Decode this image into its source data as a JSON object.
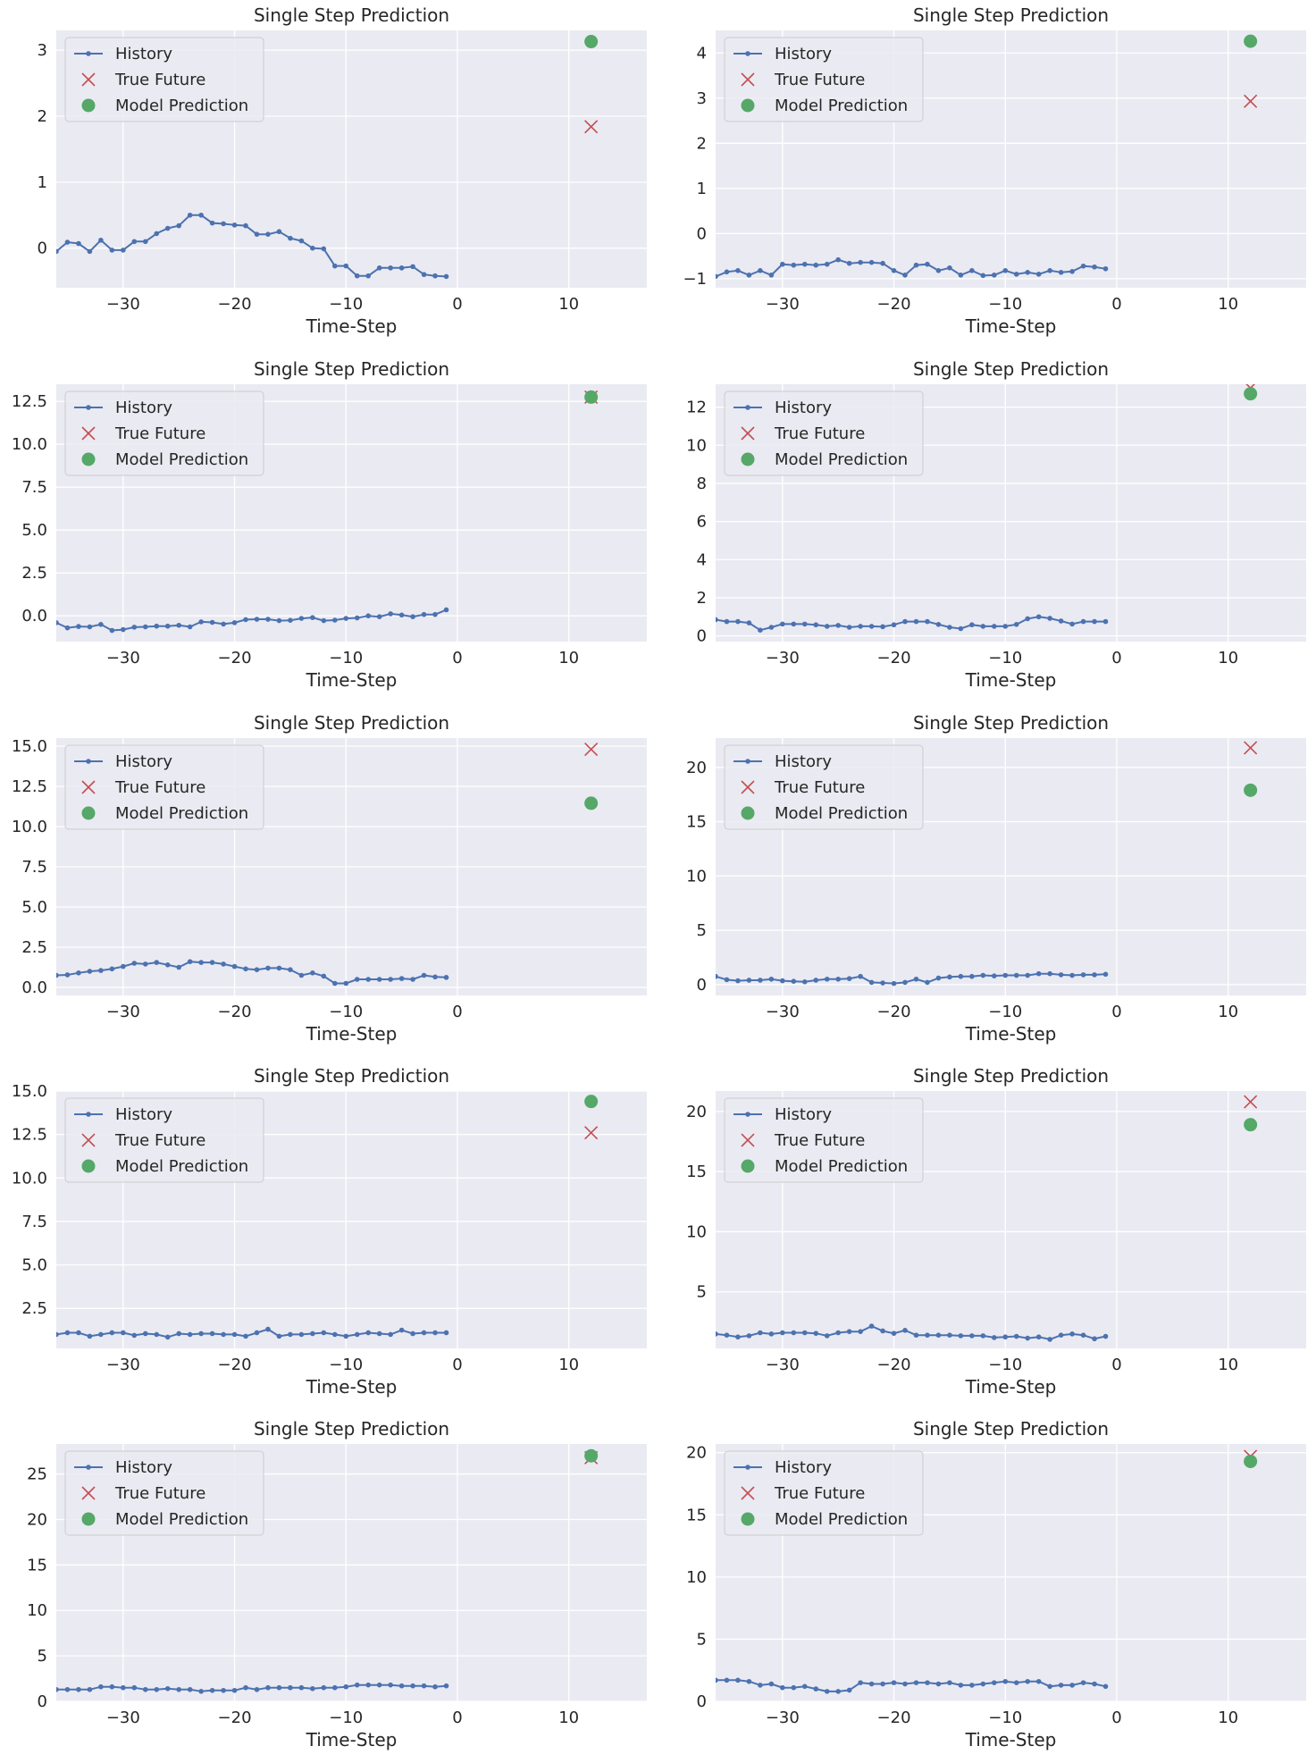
{
  "figure": {
    "colors": {
      "axes_bg": "#EAEAF2",
      "grid": "#FFFFFF",
      "history": "#4C72B0",
      "true_future": "#C44E52",
      "prediction": "#55A868",
      "legend_bg": "#EAEAF2",
      "legend_border": "#CCCCCC"
    },
    "legend": {
      "placement": "upper-left",
      "entries": [
        "History",
        "True Future",
        "Model Prediction"
      ]
    }
  },
  "chart_data": [
    {
      "type": "line",
      "title": "Single Step Prediction",
      "xlabel": "Time-Step",
      "xlim": [
        -36,
        17
      ],
      "ylim": [
        -0.6,
        3.3
      ],
      "xticks": [
        "-30",
        "-20",
        "-10",
        "0",
        "10"
      ],
      "yticks": [
        "0",
        "1",
        "2",
        "3"
      ],
      "grid": true,
      "x": [
        -36,
        -35,
        -34,
        -33,
        -32,
        -31,
        -30,
        -29,
        -28,
        -27,
        -26,
        -25,
        -24,
        -23,
        -22,
        -21,
        -20,
        -19,
        -18,
        -17,
        -16,
        -15,
        -14,
        -13,
        -12,
        -11,
        -10,
        -9,
        -8,
        -7,
        -6,
        -5,
        -4,
        -3,
        -2,
        -1
      ],
      "series": [
        {
          "name": "History",
          "values": [
            -0.05,
            0.09,
            0.07,
            -0.05,
            0.12,
            -0.03,
            -0.03,
            0.1,
            0.1,
            0.22,
            0.3,
            0.34,
            0.5,
            0.5,
            0.38,
            0.37,
            0.35,
            0.34,
            0.21,
            0.21,
            0.25,
            0.15,
            0.11,
            0.0,
            -0.01,
            -0.27,
            -0.27,
            -0.42,
            -0.42,
            -0.3,
            -0.3,
            -0.3,
            -0.28,
            -0.4,
            -0.42,
            -0.43
          ]
        },
        {
          "name": "True Future",
          "x": [
            12
          ],
          "values": [
            1.84
          ]
        },
        {
          "name": "Model Prediction",
          "x": [
            12
          ],
          "values": [
            3.13
          ]
        }
      ]
    },
    {
      "type": "line",
      "title": "Single Step Prediction",
      "xlabel": "Time-Step",
      "xlim": [
        -36,
        17
      ],
      "ylim": [
        -1.2,
        4.5
      ],
      "xticks": [
        "-30",
        "-20",
        "-10",
        "0",
        "10"
      ],
      "yticks": [
        "−1",
        "0",
        "1",
        "2",
        "3",
        "4"
      ],
      "grid": true,
      "x": [
        -36,
        -35,
        -34,
        -33,
        -32,
        -31,
        -30,
        -29,
        -28,
        -27,
        -26,
        -25,
        -24,
        -23,
        -22,
        -21,
        -20,
        -19,
        -18,
        -17,
        -16,
        -15,
        -14,
        -13,
        -12,
        -11,
        -10,
        -9,
        -8,
        -7,
        -6,
        -5,
        -4,
        -3,
        -2,
        -1
      ],
      "series": [
        {
          "name": "History",
          "values": [
            -0.95,
            -0.85,
            -0.82,
            -0.92,
            -0.82,
            -0.92,
            -0.68,
            -0.7,
            -0.68,
            -0.7,
            -0.68,
            -0.58,
            -0.66,
            -0.64,
            -0.64,
            -0.66,
            -0.82,
            -0.92,
            -0.7,
            -0.68,
            -0.82,
            -0.76,
            -0.92,
            -0.82,
            -0.93,
            -0.92,
            -0.82,
            -0.9,
            -0.86,
            -0.9,
            -0.82,
            -0.86,
            -0.84,
            -0.72,
            -0.74,
            -0.78
          ]
        },
        {
          "name": "True Future",
          "x": [
            12
          ],
          "values": [
            2.93
          ]
        },
        {
          "name": "Model Prediction",
          "x": [
            12
          ],
          "values": [
            4.26
          ]
        }
      ]
    },
    {
      "type": "line",
      "title": "Single Step Prediction",
      "xlabel": "Time-Step",
      "xlim": [
        -36,
        17
      ],
      "ylim": [
        -1.5,
        13.5
      ],
      "xticks": [
        "-30",
        "-20",
        "-10",
        "0",
        "10"
      ],
      "yticks": [
        "0.0",
        "2.5",
        "5.0",
        "7.5",
        "10.0",
        "12.5"
      ],
      "grid": true,
      "x": [
        -36,
        -35,
        -34,
        -33,
        -32,
        -31,
        -30,
        -29,
        -28,
        -27,
        -26,
        -25,
        -24,
        -23,
        -22,
        -21,
        -20,
        -19,
        -18,
        -17,
        -16,
        -15,
        -14,
        -13,
        -12,
        -11,
        -10,
        -9,
        -8,
        -7,
        -6,
        -5,
        -4,
        -3,
        -2,
        -1
      ],
      "series": [
        {
          "name": "History",
          "values": [
            -0.4,
            -0.7,
            -0.62,
            -0.64,
            -0.5,
            -0.85,
            -0.8,
            -0.66,
            -0.64,
            -0.6,
            -0.6,
            -0.55,
            -0.64,
            -0.35,
            -0.38,
            -0.48,
            -0.4,
            -0.22,
            -0.2,
            -0.2,
            -0.28,
            -0.26,
            -0.15,
            -0.1,
            -0.28,
            -0.25,
            -0.15,
            -0.12,
            0.0,
            -0.05,
            0.12,
            0.05,
            -0.05,
            0.08,
            0.08,
            0.35
          ]
        },
        {
          "name": "True Future",
          "x": [
            12
          ],
          "values": [
            12.75
          ]
        },
        {
          "name": "Model Prediction",
          "x": [
            12
          ],
          "values": [
            12.75
          ]
        }
      ]
    },
    {
      "type": "line",
      "title": "Single Step Prediction",
      "xlabel": "Time-Step",
      "xlim": [
        -36,
        17
      ],
      "ylim": [
        -0.3,
        13.2
      ],
      "xticks": [
        "-30",
        "-20",
        "-10",
        "0",
        "10"
      ],
      "yticks": [
        "0",
        "2",
        "4",
        "6",
        "8",
        "10",
        "12"
      ],
      "grid": true,
      "x": [
        -36,
        -35,
        -34,
        -33,
        -32,
        -31,
        -30,
        -29,
        -28,
        -27,
        -26,
        -25,
        -24,
        -23,
        -22,
        -21,
        -20,
        -19,
        -18,
        -17,
        -16,
        -15,
        -14,
        -13,
        -12,
        -11,
        -10,
        -9,
        -8,
        -7,
        -6,
        -5,
        -4,
        -3,
        -2,
        -1
      ],
      "series": [
        {
          "name": "History",
          "values": [
            0.85,
            0.75,
            0.75,
            0.68,
            0.3,
            0.45,
            0.62,
            0.62,
            0.62,
            0.58,
            0.5,
            0.55,
            0.45,
            0.5,
            0.5,
            0.48,
            0.58,
            0.75,
            0.75,
            0.75,
            0.6,
            0.45,
            0.38,
            0.58,
            0.5,
            0.5,
            0.5,
            0.6,
            0.9,
            1.0,
            0.92,
            0.78,
            0.62,
            0.75,
            0.75,
            0.75
          ]
        },
        {
          "name": "True Future",
          "x": [
            12
          ],
          "values": [
            13.0
          ]
        },
        {
          "name": "Model Prediction",
          "x": [
            12
          ],
          "values": [
            12.7
          ]
        }
      ]
    },
    {
      "type": "line",
      "title": "Single Step Prediction",
      "xlabel": "Time-Step",
      "xlim": [
        -36,
        17
      ],
      "ylim": [
        -0.5,
        15.5
      ],
      "xticks": [
        "-30",
        "-20",
        "-10",
        "0"
      ],
      "yticks": [
        "0.0",
        "2.5",
        "5.0",
        "7.5",
        "10.0",
        "12.5",
        "15.0"
      ],
      "grid": true,
      "x": [
        -36,
        -35,
        -34,
        -33,
        -32,
        -31,
        -30,
        -29,
        -28,
        -27,
        -26,
        -25,
        -24,
        -23,
        -22,
        -21,
        -20,
        -19,
        -18,
        -17,
        -16,
        -15,
        -14,
        -13,
        -12,
        -11,
        -10,
        -9,
        -8,
        -7,
        -6,
        -5,
        -4,
        -3,
        -2,
        -1
      ],
      "series": [
        {
          "name": "History",
          "values": [
            0.75,
            0.78,
            0.9,
            1.0,
            1.05,
            1.15,
            1.3,
            1.5,
            1.45,
            1.55,
            1.4,
            1.25,
            1.6,
            1.55,
            1.55,
            1.45,
            1.3,
            1.15,
            1.1,
            1.2,
            1.2,
            1.1,
            0.75,
            0.9,
            0.7,
            0.25,
            0.25,
            0.5,
            0.5,
            0.5,
            0.5,
            0.55,
            0.5,
            0.75,
            0.65,
            0.62
          ]
        },
        {
          "name": "True Future",
          "x": [
            12
          ],
          "values": [
            14.8
          ]
        },
        {
          "name": "Model Prediction",
          "x": [
            12
          ],
          "values": [
            11.45
          ]
        }
      ]
    },
    {
      "type": "line",
      "title": "Single Step Prediction",
      "xlabel": "Time-Step",
      "xlim": [
        -36,
        17
      ],
      "ylim": [
        -1.0,
        22.7
      ],
      "xticks": [
        "-30",
        "-20",
        "-10",
        "0",
        "10"
      ],
      "yticks": [
        "0",
        "5",
        "10",
        "15",
        "20"
      ],
      "grid": true,
      "x": [
        -36,
        -35,
        -34,
        -33,
        -32,
        -31,
        -30,
        -29,
        -28,
        -27,
        -26,
        -25,
        -24,
        -23,
        -22,
        -21,
        -20,
        -19,
        -18,
        -17,
        -16,
        -15,
        -14,
        -13,
        -12,
        -11,
        -10,
        -9,
        -8,
        -7,
        -6,
        -5,
        -4,
        -3,
        -2,
        -1
      ],
      "series": [
        {
          "name": "History",
          "values": [
            0.75,
            0.45,
            0.35,
            0.4,
            0.4,
            0.5,
            0.35,
            0.3,
            0.25,
            0.4,
            0.5,
            0.5,
            0.55,
            0.75,
            0.2,
            0.15,
            0.1,
            0.2,
            0.5,
            0.2,
            0.6,
            0.7,
            0.75,
            0.75,
            0.85,
            0.8,
            0.85,
            0.85,
            0.85,
            1.0,
            1.0,
            0.9,
            0.85,
            0.9,
            0.9,
            0.95
          ]
        },
        {
          "name": "True Future",
          "x": [
            12
          ],
          "values": [
            21.8
          ]
        },
        {
          "name": "Model Prediction",
          "x": [
            12
          ],
          "values": [
            17.9
          ]
        }
      ]
    },
    {
      "type": "line",
      "title": "Single Step Prediction",
      "xlabel": "Time-Step",
      "xlim": [
        -36,
        17
      ],
      "ylim": [
        0.2,
        15.0
      ],
      "xticks": [
        "-30",
        "-20",
        "-10",
        "0",
        "10"
      ],
      "yticks": [
        "2.5",
        "5.0",
        "7.5",
        "10.0",
        "12.5",
        "15.0"
      ],
      "grid": true,
      "x": [
        -36,
        -35,
        -34,
        -33,
        -32,
        -31,
        -30,
        -29,
        -28,
        -27,
        -26,
        -25,
        -24,
        -23,
        -22,
        -21,
        -20,
        -19,
        -18,
        -17,
        -16,
        -15,
        -14,
        -13,
        -12,
        -11,
        -10,
        -9,
        -8,
        -7,
        -6,
        -5,
        -4,
        -3,
        -2,
        -1
      ],
      "series": [
        {
          "name": "History",
          "values": [
            1.0,
            1.1,
            1.1,
            0.9,
            1.0,
            1.1,
            1.1,
            0.95,
            1.05,
            1.0,
            0.85,
            1.05,
            1.0,
            1.05,
            1.05,
            1.0,
            1.0,
            0.9,
            1.1,
            1.3,
            0.9,
            1.0,
            1.0,
            1.05,
            1.1,
            1.0,
            0.9,
            1.0,
            1.1,
            1.05,
            1.0,
            1.25,
            1.05,
            1.1,
            1.1,
            1.1
          ]
        },
        {
          "name": "True Future",
          "x": [
            12
          ],
          "values": [
            12.6
          ]
        },
        {
          "name": "Model Prediction",
          "x": [
            12
          ],
          "values": [
            14.4
          ]
        }
      ]
    },
    {
      "type": "line",
      "title": "Single Step Prediction",
      "xlabel": "Time-Step",
      "xlim": [
        -36,
        17
      ],
      "ylim": [
        0.3,
        21.7
      ],
      "xticks": [
        "-30",
        "-20",
        "-10",
        "0",
        "10"
      ],
      "yticks": [
        "5",
        "10",
        "15",
        "20"
      ],
      "grid": true,
      "x": [
        -36,
        -35,
        -34,
        -33,
        -32,
        -31,
        -30,
        -29,
        -28,
        -27,
        -26,
        -25,
        -24,
        -23,
        -22,
        -21,
        -20,
        -19,
        -18,
        -17,
        -16,
        -15,
        -14,
        -13,
        -12,
        -11,
        -10,
        -9,
        -8,
        -7,
        -6,
        -5,
        -4,
        -3,
        -2,
        -1
      ],
      "series": [
        {
          "name": "History",
          "values": [
            1.5,
            1.4,
            1.25,
            1.35,
            1.6,
            1.5,
            1.6,
            1.6,
            1.6,
            1.55,
            1.35,
            1.6,
            1.7,
            1.7,
            2.15,
            1.75,
            1.55,
            1.8,
            1.4,
            1.4,
            1.4,
            1.4,
            1.35,
            1.35,
            1.35,
            1.2,
            1.25,
            1.3,
            1.15,
            1.25,
            1.05,
            1.4,
            1.5,
            1.4,
            1.1,
            1.3
          ]
        },
        {
          "name": "True Future",
          "x": [
            12
          ],
          "values": [
            20.8
          ]
        },
        {
          "name": "Model Prediction",
          "x": [
            12
          ],
          "values": [
            18.9
          ]
        }
      ]
    },
    {
      "type": "line",
      "title": "Single Step Prediction",
      "xlabel": "Time-Step",
      "xlim": [
        -36,
        17
      ],
      "ylim": [
        0,
        28.3
      ],
      "xticks": [
        "-30",
        "-20",
        "-10",
        "0",
        "10"
      ],
      "yticks": [
        "0",
        "5",
        "10",
        "15",
        "20",
        "25"
      ],
      "grid": true,
      "x": [
        -36,
        -35,
        -34,
        -33,
        -32,
        -31,
        -30,
        -29,
        -28,
        -27,
        -26,
        -25,
        -24,
        -23,
        -22,
        -21,
        -20,
        -19,
        -18,
        -17,
        -16,
        -15,
        -14,
        -13,
        -12,
        -11,
        -10,
        -9,
        -8,
        -7,
        -6,
        -5,
        -4,
        -3,
        -2,
        -1
      ],
      "series": [
        {
          "name": "History",
          "values": [
            1.3,
            1.3,
            1.3,
            1.3,
            1.6,
            1.6,
            1.5,
            1.5,
            1.3,
            1.3,
            1.4,
            1.3,
            1.3,
            1.1,
            1.2,
            1.2,
            1.2,
            1.5,
            1.3,
            1.5,
            1.5,
            1.5,
            1.5,
            1.4,
            1.5,
            1.5,
            1.6,
            1.8,
            1.8,
            1.8,
            1.8,
            1.7,
            1.7,
            1.7,
            1.6,
            1.7
          ]
        },
        {
          "name": "True Future",
          "x": [
            12
          ],
          "values": [
            26.8
          ]
        },
        {
          "name": "Model Prediction",
          "x": [
            12
          ],
          "values": [
            27.0
          ]
        }
      ]
    },
    {
      "type": "line",
      "title": "Single Step Prediction",
      "xlabel": "Time-Step",
      "xlim": [
        -36,
        17
      ],
      "ylim": [
        0,
        20.7
      ],
      "xticks": [
        "-30",
        "-20",
        "-10",
        "0",
        "10"
      ],
      "yticks": [
        "0",
        "5",
        "10",
        "15",
        "20"
      ],
      "grid": true,
      "x": [
        -36,
        -35,
        -34,
        -33,
        -32,
        -31,
        -30,
        -29,
        -28,
        -27,
        -26,
        -25,
        -24,
        -23,
        -22,
        -21,
        -20,
        -19,
        -18,
        -17,
        -16,
        -15,
        -14,
        -13,
        -12,
        -11,
        -10,
        -9,
        -8,
        -7,
        -6,
        -5,
        -4,
        -3,
        -2,
        -1
      ],
      "series": [
        {
          "name": "History",
          "values": [
            1.7,
            1.7,
            1.7,
            1.6,
            1.3,
            1.4,
            1.1,
            1.1,
            1.2,
            1.0,
            0.8,
            0.8,
            0.9,
            1.5,
            1.4,
            1.4,
            1.5,
            1.4,
            1.5,
            1.5,
            1.4,
            1.5,
            1.3,
            1.3,
            1.4,
            1.5,
            1.6,
            1.5,
            1.6,
            1.6,
            1.2,
            1.3,
            1.3,
            1.5,
            1.4,
            1.2
          ]
        },
        {
          "name": "True Future",
          "x": [
            12
          ],
          "values": [
            19.7
          ]
        },
        {
          "name": "Model Prediction",
          "x": [
            12
          ],
          "values": [
            19.3
          ]
        }
      ]
    }
  ]
}
